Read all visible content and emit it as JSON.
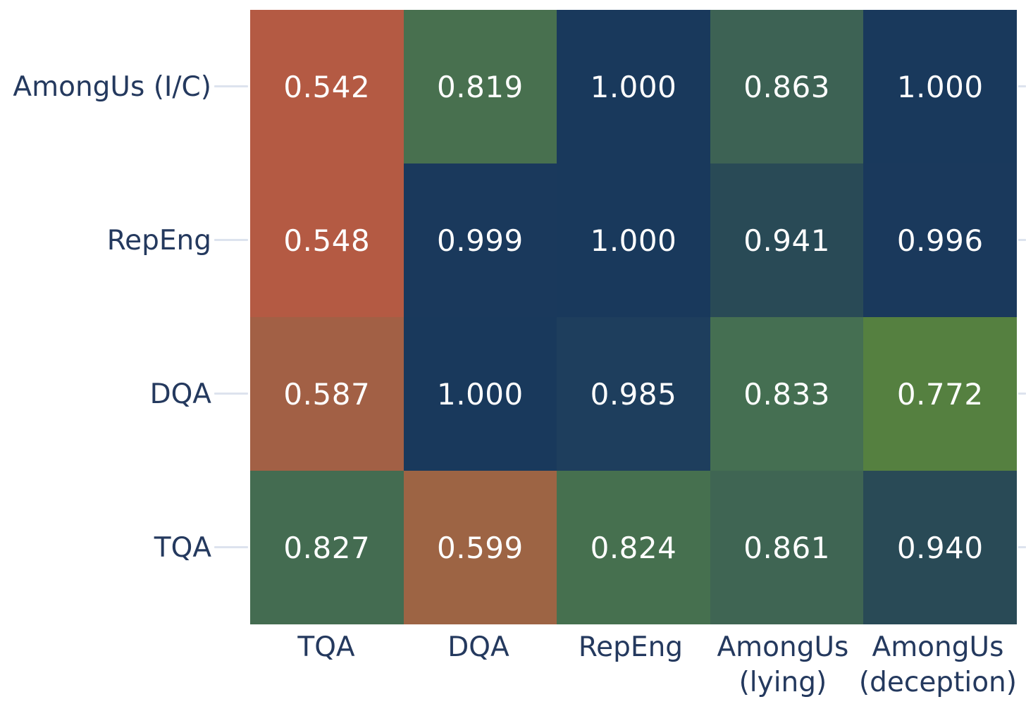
{
  "chart_data": {
    "type": "heatmap",
    "title": "",
    "xlabel": "",
    "ylabel": "",
    "legend": "none",
    "grid": "off",
    "value_range": [
      0,
      1
    ],
    "value_format": "3-decimal",
    "rows": [
      "AmongUs (I/C)",
      "RepEng",
      "DQA",
      "TQA"
    ],
    "columns": [
      "TQA",
      "DQA",
      "RepEng",
      "AmongUs\n(lying)",
      "AmongUs\n(deception)"
    ],
    "values": [
      [
        0.542,
        0.819,
        1.0,
        0.863,
        1.0
      ],
      [
        0.548,
        0.999,
        1.0,
        0.941,
        0.996
      ],
      [
        0.587,
        1.0,
        0.985,
        0.833,
        0.772
      ],
      [
        0.827,
        0.599,
        0.824,
        0.861,
        0.94
      ]
    ],
    "cell_colors": [
      [
        "#b45a43",
        "#48704f",
        "#19395c",
        "#3d6254",
        "#19395c"
      ],
      [
        "#b45a43",
        "#1a395c",
        "#19395c",
        "#294a56",
        "#1a395c"
      ],
      [
        "#a26045",
        "#19395c",
        "#1e3e5d",
        "#456f52",
        "#558040"
      ],
      [
        "#446c51",
        "#9d6444",
        "#46704f",
        "#3f6553",
        "#294a56"
      ]
    ],
    "colors": {
      "cell_text": "#ffffff",
      "axis_label": "#24395e",
      "tick": "#dde3ee",
      "background": "#ffffff"
    }
  }
}
